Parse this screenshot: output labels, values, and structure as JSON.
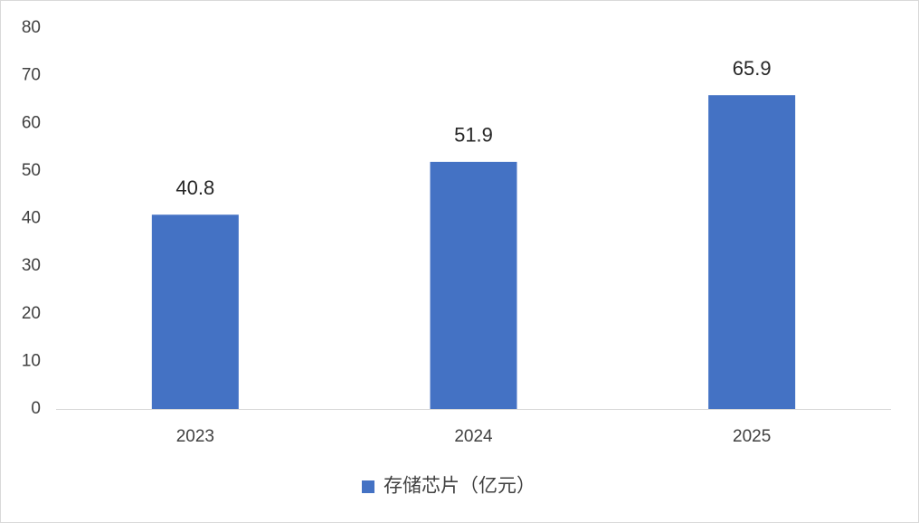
{
  "chart_data": {
    "type": "bar",
    "categories": [
      "2023",
      "2024",
      "2025"
    ],
    "series": [
      {
        "name": "存储芯片（亿元）",
        "color": "#4472c4",
        "values": [
          40.8,
          51.9,
          65.9
        ]
      }
    ],
    "ylim": [
      0,
      80
    ],
    "yticks": [
      0,
      10,
      20,
      30,
      40,
      50,
      60,
      70,
      80
    ],
    "grid": false,
    "legend": "bottom",
    "data_labels": true
  }
}
